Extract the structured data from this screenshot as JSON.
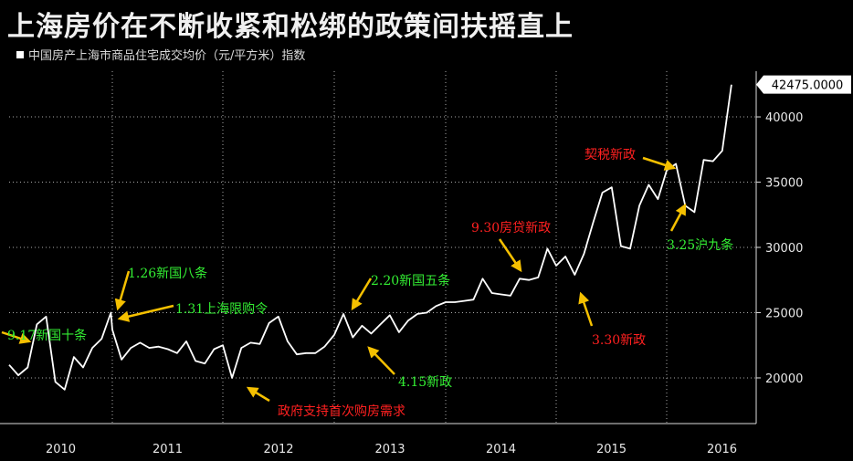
{
  "chart_data": {
    "type": "line",
    "title": "上海房价在不断收紧和松绑的政策间扶摇直上",
    "legend": "中国房产上海市商品住宅成交均价（元/平方米）指数",
    "last_value_label": "42475.0000",
    "y_ticks": [
      20000,
      25000,
      30000,
      35000,
      40000
    ],
    "ylim": [
      16500,
      43500
    ],
    "x_year_labels": [
      "2010",
      "2011",
      "2012",
      "2013",
      "2014",
      "2015",
      "2016"
    ],
    "colors": {
      "line": "#ffffff",
      "green": "#33ee33",
      "red": "#ff2020",
      "arrow": "#f5c000",
      "grid": "#aaaaaa"
    },
    "series": [
      {
        "values": [
          {
            "x": "2010-01",
            "y": 21000
          },
          {
            "x": "2010-02",
            "y": 20200
          },
          {
            "x": "2010-03",
            "y": 20800
          },
          {
            "x": "2010-04",
            "y": 24100
          },
          {
            "x": "2010-05",
            "y": 24700
          },
          {
            "x": "2010-06",
            "y": 19700
          },
          {
            "x": "2010-07",
            "y": 19100
          },
          {
            "x": "2010-08",
            "y": 21600
          },
          {
            "x": "2010-09",
            "y": 20800
          },
          {
            "x": "2010-10",
            "y": 22300
          },
          {
            "x": "2010-11",
            "y": 23000
          },
          {
            "x": "2010-12",
            "y": 25000
          },
          {
            "x": "2011-01",
            "y": 23700
          },
          {
            "x": "2011-02",
            "y": 21400
          },
          {
            "x": "2011-03",
            "y": 22300
          },
          {
            "x": "2011-04",
            "y": 22700
          },
          {
            "x": "2011-05",
            "y": 22300
          },
          {
            "x": "2011-06",
            "y": 22400
          },
          {
            "x": "2011-07",
            "y": 22200
          },
          {
            "x": "2011-08",
            "y": 21900
          },
          {
            "x": "2011-09",
            "y": 22800
          },
          {
            "x": "2011-10",
            "y": 21300
          },
          {
            "x": "2011-11",
            "y": 21100
          },
          {
            "x": "2011-12",
            "y": 22200
          },
          {
            "x": "2012-01",
            "y": 22500
          },
          {
            "x": "2012-02",
            "y": 20000
          },
          {
            "x": "2012-03",
            "y": 22300
          },
          {
            "x": "2012-04",
            "y": 22700
          },
          {
            "x": "2012-05",
            "y": 22600
          },
          {
            "x": "2012-06",
            "y": 24200
          },
          {
            "x": "2012-07",
            "y": 24700
          },
          {
            "x": "2012-08",
            "y": 22800
          },
          {
            "x": "2012-09",
            "y": 21800
          },
          {
            "x": "2012-10",
            "y": 21900
          },
          {
            "x": "2012-11",
            "y": 21900
          },
          {
            "x": "2012-12",
            "y": 22400
          },
          {
            "x": "2013-01",
            "y": 23300
          },
          {
            "x": "2013-02",
            "y": 24900
          },
          {
            "x": "2013-03",
            "y": 23100
          },
          {
            "x": "2013-04",
            "y": 24000
          },
          {
            "x": "2013-05",
            "y": 23400
          },
          {
            "x": "2013-06",
            "y": 24100
          },
          {
            "x": "2013-07",
            "y": 24800
          },
          {
            "x": "2013-08",
            "y": 23500
          },
          {
            "x": "2013-09",
            "y": 24400
          },
          {
            "x": "2013-10",
            "y": 24900
          },
          {
            "x": "2013-11",
            "y": 25000
          },
          {
            "x": "2013-12",
            "y": 25500
          },
          {
            "x": "2014-01",
            "y": 25800
          },
          {
            "x": "2014-02",
            "y": 25800
          },
          {
            "x": "2014-03",
            "y": 25900
          },
          {
            "x": "2014-04",
            "y": 26000
          },
          {
            "x": "2014-05",
            "y": 27600
          },
          {
            "x": "2014-06",
            "y": 26500
          },
          {
            "x": "2014-07",
            "y": 26400
          },
          {
            "x": "2014-08",
            "y": 26300
          },
          {
            "x": "2014-09",
            "y": 27600
          },
          {
            "x": "2014-10",
            "y": 27500
          },
          {
            "x": "2014-11",
            "y": 27700
          },
          {
            "x": "2014-12",
            "y": 29900
          },
          {
            "x": "2015-01",
            "y": 28600
          },
          {
            "x": "2015-02",
            "y": 29300
          },
          {
            "x": "2015-03",
            "y": 27900
          },
          {
            "x": "2015-04",
            "y": 29500
          },
          {
            "x": "2015-05",
            "y": 31900
          },
          {
            "x": "2015-06",
            "y": 34200
          },
          {
            "x": "2015-07",
            "y": 34600
          },
          {
            "x": "2015-08",
            "y": 30100
          },
          {
            "x": "2015-09",
            "y": 29900
          },
          {
            "x": "2015-10",
            "y": 33200
          },
          {
            "x": "2015-11",
            "y": 34800
          },
          {
            "x": "2015-12",
            "y": 33700
          },
          {
            "x": "2016-01",
            "y": 35900
          },
          {
            "x": "2016-02",
            "y": 36400
          },
          {
            "x": "2016-03",
            "y": 33200
          },
          {
            "x": "2016-04",
            "y": 32700
          },
          {
            "x": "2016-05",
            "y": 36700
          },
          {
            "x": "2016-06",
            "y": 36600
          },
          {
            "x": "2016-07",
            "y": 37400
          },
          {
            "x": "2016-08",
            "y": 42475
          }
        ]
      }
    ],
    "annotations": [
      {
        "text": "9.17新国十条",
        "color": "green"
      },
      {
        "text": "1.26新国八条",
        "color": "green"
      },
      {
        "text": "1.31上海限购令",
        "color": "green"
      },
      {
        "text": "政府支持首次购房需求",
        "color": "red"
      },
      {
        "text": "2.20新国五条",
        "color": "green"
      },
      {
        "text": "4.15新政",
        "color": "green"
      },
      {
        "text": "9.30房贷新政",
        "color": "red"
      },
      {
        "text": "3.30新政",
        "color": "red"
      },
      {
        "text": "契税新政",
        "color": "red"
      },
      {
        "text": "3.25沪九条",
        "color": "green"
      }
    ]
  }
}
